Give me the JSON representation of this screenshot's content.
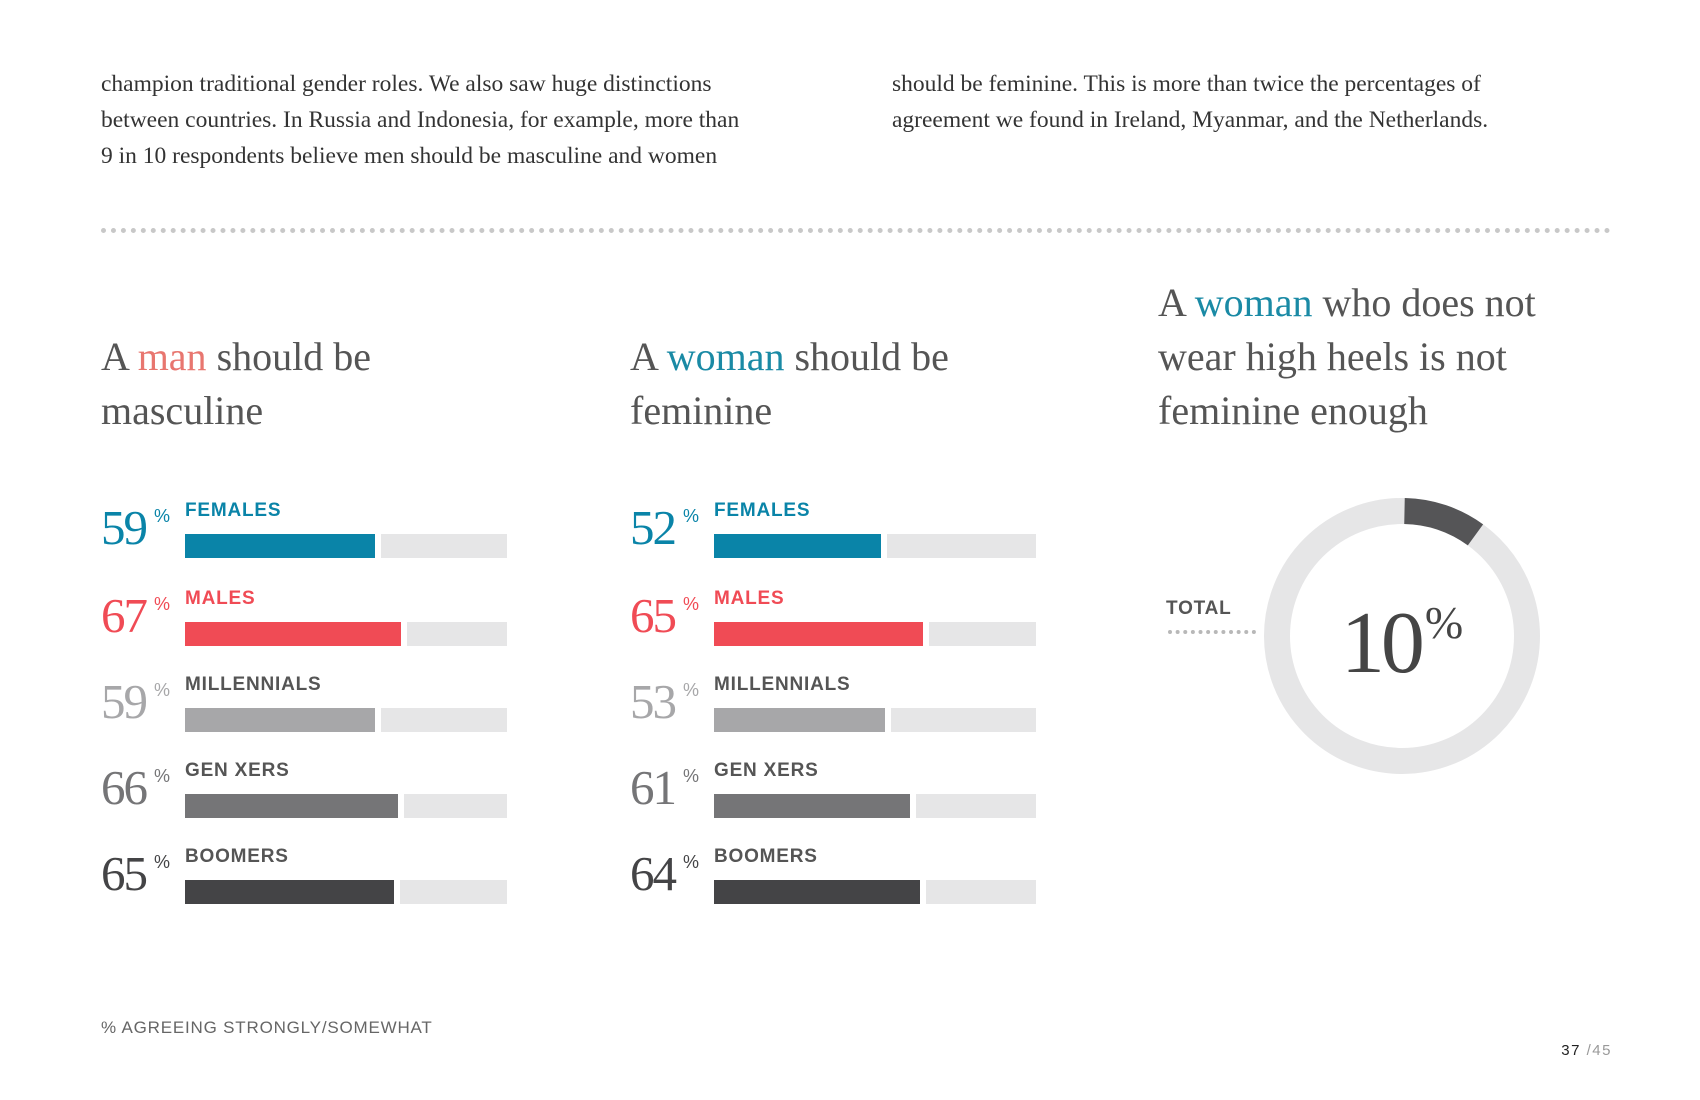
{
  "intro": {
    "left_lines": [
      "champion traditional gender roles. We also saw huge distinctions",
      "between countries. In Russia and Indonesia, for example, more than",
      "9 in 10 respondents believe men should be masculine and women"
    ],
    "right_lines": [
      "should be feminine. This is more than twice the percentages of",
      "agreement we found in Ireland, Myanmar, and the Netherlands."
    ]
  },
  "colors": {
    "man_accent": "#e8766f",
    "woman_accent": "#1a8aa5",
    "females": "#0a84a8",
    "males": "#f04b55",
    "millennials": "#a7a7a9",
    "gen_xers": "#757577",
    "boomers": "#444446",
    "track": "#e6e6e7"
  },
  "chart_data": [
    {
      "type": "bar",
      "title_parts": {
        "pre": "A ",
        "highlight": "man",
        "post": " should be masculine"
      },
      "unit": "%",
      "categories": [
        "FEMALES",
        "MALES",
        "MILLENNIALS",
        "GEN XERS",
        "BOOMERS"
      ],
      "values": [
        59,
        67,
        59,
        66,
        65
      ],
      "ylim": [
        0,
        100
      ]
    },
    {
      "type": "bar",
      "title_parts": {
        "pre": "A ",
        "highlight": "woman",
        "post": " should be feminine"
      },
      "unit": "%",
      "categories": [
        "FEMALES",
        "MALES",
        "MILLENNIALS",
        "GEN XERS",
        "BOOMERS"
      ],
      "values": [
        52,
        65,
        53,
        61,
        64
      ],
      "ylim": [
        0,
        100
      ]
    },
    {
      "type": "pie",
      "title_parts": {
        "pre": "A ",
        "highlight": "woman",
        "post": " who does not wear high heels is not feminine enough"
      },
      "label": "TOTAL",
      "value": 10,
      "display_value": "10",
      "unit": "%"
    }
  ],
  "footnote": "% AGREEING STRONGLY/SOMEWHAT",
  "page": {
    "current": "37",
    "total": "/45"
  }
}
